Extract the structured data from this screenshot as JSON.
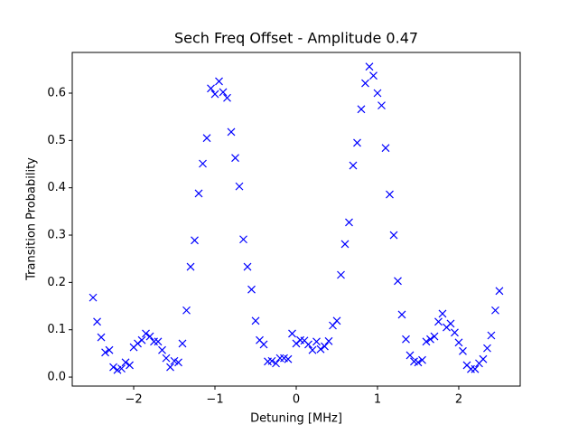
{
  "chart_data": {
    "type": "scatter",
    "title": "Sech Freq Offset - Amplitude 0.47",
    "x_label": "Detuning [MHz]",
    "y_label": "Transition Probability",
    "marker": "x",
    "color": "#0000ff",
    "grid": false,
    "x": [
      -2.5,
      -2.45,
      -2.4,
      -2.35,
      -2.3,
      -2.25,
      -2.2,
      -2.15,
      -2.1,
      -2.05,
      -2.0,
      -1.95,
      -1.9,
      -1.85,
      -1.8,
      -1.75,
      -1.7,
      -1.65,
      -1.6,
      -1.55,
      -1.5,
      -1.45,
      -1.4,
      -1.35,
      -1.3,
      -1.25,
      -1.2,
      -1.15,
      -1.1,
      -1.05,
      -1.0,
      -0.95,
      -0.9,
      -0.85,
      -0.8,
      -0.75,
      -0.7,
      -0.65,
      -0.6,
      -0.55,
      -0.5,
      -0.45,
      -0.4,
      -0.35,
      -0.3,
      -0.25,
      -0.2,
      -0.15,
      -0.1,
      -0.05,
      0,
      0.05,
      0.1,
      0.15,
      0.2,
      0.25,
      0.3,
      0.35,
      0.4,
      0.45,
      0.5,
      0.55,
      0.6,
      0.65,
      0.7,
      0.75,
      0.8,
      0.85,
      0.9,
      0.95,
      1.0,
      1.05,
      1.1,
      1.15,
      1.2,
      1.25,
      1.3,
      1.35,
      1.4,
      1.45,
      1.5,
      1.55,
      1.6,
      1.65,
      1.7,
      1.75,
      1.8,
      1.85,
      1.9,
      1.95,
      2.0,
      2.05,
      2.1,
      2.15,
      2.2,
      2.25,
      2.3,
      2.35,
      2.4,
      2.45,
      2.5
    ],
    "values": [
      0.168,
      0.117,
      0.084,
      0.052,
      0.057,
      0.021,
      0.015,
      0.018,
      0.031,
      0.025,
      0.063,
      0.071,
      0.078,
      0.092,
      0.086,
      0.075,
      0.075,
      0.057,
      0.04,
      0.021,
      0.034,
      0.031,
      0.071,
      0.141,
      0.233,
      0.289,
      0.388,
      0.451,
      0.505,
      0.61,
      0.598,
      0.625,
      0.602,
      0.59,
      0.518,
      0.463,
      0.403,
      0.291,
      0.233,
      0.185,
      0.119,
      0.078,
      0.069,
      0.033,
      0.034,
      0.029,
      0.04,
      0.04,
      0.038,
      0.092,
      0.071,
      0.078,
      0.077,
      0.069,
      0.057,
      0.075,
      0.059,
      0.065,
      0.076,
      0.109,
      0.119,
      0.216,
      0.281,
      0.327,
      0.447,
      0.495,
      0.566,
      0.621,
      0.656,
      0.637,
      0.6,
      0.574,
      0.484,
      0.386,
      0.3,
      0.203,
      0.132,
      0.08,
      0.046,
      0.033,
      0.031,
      0.036,
      0.075,
      0.08,
      0.086,
      0.117,
      0.134,
      0.105,
      0.113,
      0.094,
      0.073,
      0.055,
      0.025,
      0.017,
      0.017,
      0.029,
      0.038,
      0.061,
      0.088,
      0.141,
      0.182
    ],
    "xlim": [
      -2.756,
      2.756
    ],
    "ylim": [
      -0.019,
      0.686
    ],
    "xticks": [
      {
        "value": -2,
        "label": "−2"
      },
      {
        "value": -1,
        "label": "−1"
      },
      0,
      1,
      2
    ],
    "yticks": [
      {
        "value": 0,
        "label": "0.0"
      },
      0.1,
      0.2,
      0.3,
      0.4,
      0.5,
      0.6
    ]
  }
}
